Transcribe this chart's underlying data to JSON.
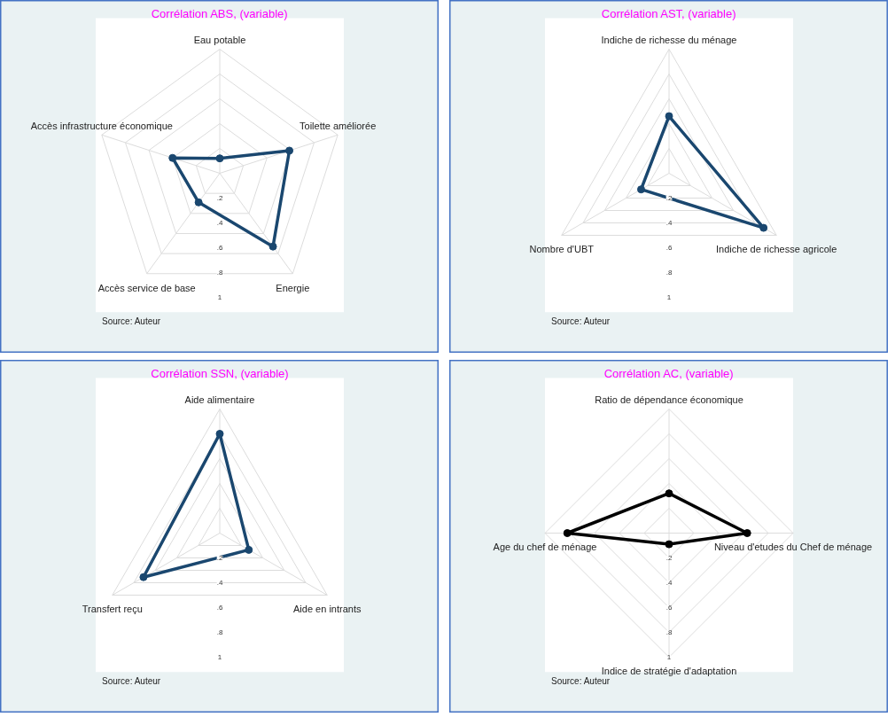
{
  "chart_data": [
    {
      "type": "radar",
      "title": "Corrélation ABS, (variable)",
      "categories": [
        "Eau potable",
        "Toilette améliorée",
        "Energie",
        "Accès service de base",
        "Accès infrastructure économique"
      ],
      "series": [
        {
          "color": "#1a476f",
          "values": [
            0.12,
            0.59,
            0.73,
            0.29,
            0.4
          ]
        }
      ],
      "ylim": [
        0,
        1
      ],
      "yticks": [
        {
          "value": 0.2,
          "label": ".2"
        },
        {
          "value": 0.4,
          "label": ".4"
        },
        {
          "value": 0.6,
          "label": ".6"
        },
        {
          "value": 0.8,
          "label": ".8"
        },
        1
      ],
      "annotations": [
        "Source: Auteur"
      ],
      "marker": "circle",
      "grid": true
    },
    {
      "type": "radar",
      "title": "Corrélation AST, (variable)",
      "categories": [
        "Indiche de richesse du ménage",
        "Indiche de richesse agricole",
        "Nombre d'UBT"
      ],
      "series": [
        {
          "color": "#1a476f",
          "values": [
            0.46,
            0.88,
            0.26
          ]
        }
      ],
      "ylim": [
        0,
        1
      ],
      "yticks": [
        {
          "value": 0.2,
          "label": ".2"
        },
        {
          "value": 0.4,
          "label": ".4"
        },
        {
          "value": 0.6,
          "label": ".6"
        },
        {
          "value": 0.8,
          "label": ".8"
        },
        1
      ],
      "annotations": [
        "Source: Auteur"
      ],
      "marker": "circle",
      "grid": true
    },
    {
      "type": "radar",
      "title": "Corrélation SSN, (variable)",
      "categories": [
        "Aide alimentaire",
        "Aide en intrants",
        "Transfert reçu"
      ],
      "series": [
        {
          "color": "#1a476f",
          "values": [
            0.8,
            0.27,
            0.71
          ]
        }
      ],
      "ylim": [
        0,
        1
      ],
      "yticks": [
        {
          "value": 0.2,
          "label": ".2"
        },
        {
          "value": 0.4,
          "label": ".4"
        },
        {
          "value": 0.6,
          "label": ".6"
        },
        {
          "value": 0.8,
          "label": ".8"
        },
        1
      ],
      "annotations": [
        "Source: Auteur"
      ],
      "marker": "circle",
      "grid": true
    },
    {
      "type": "radar",
      "title": "Corrélation AC, (variable)",
      "categories": [
        "Ratio de dépendance économique",
        "Niveau d'etudes du Chef de ménage",
        "Indice de stratégie d'adaptation",
        "Age du chef de ménage"
      ],
      "series": [
        {
          "color": "#000000",
          "values": [
            0.32,
            0.63,
            0.09,
            0.82
          ]
        }
      ],
      "ylim": [
        0,
        1
      ],
      "yticks": [
        {
          "value": 0.2,
          "label": ".2"
        },
        {
          "value": 0.4,
          "label": ".4"
        },
        {
          "value": 0.6,
          "label": ".6"
        },
        {
          "value": 0.8,
          "label": ".8"
        },
        1
      ],
      "annotations": [
        "Source: Auteur"
      ],
      "marker": "circle",
      "grid": true
    }
  ]
}
